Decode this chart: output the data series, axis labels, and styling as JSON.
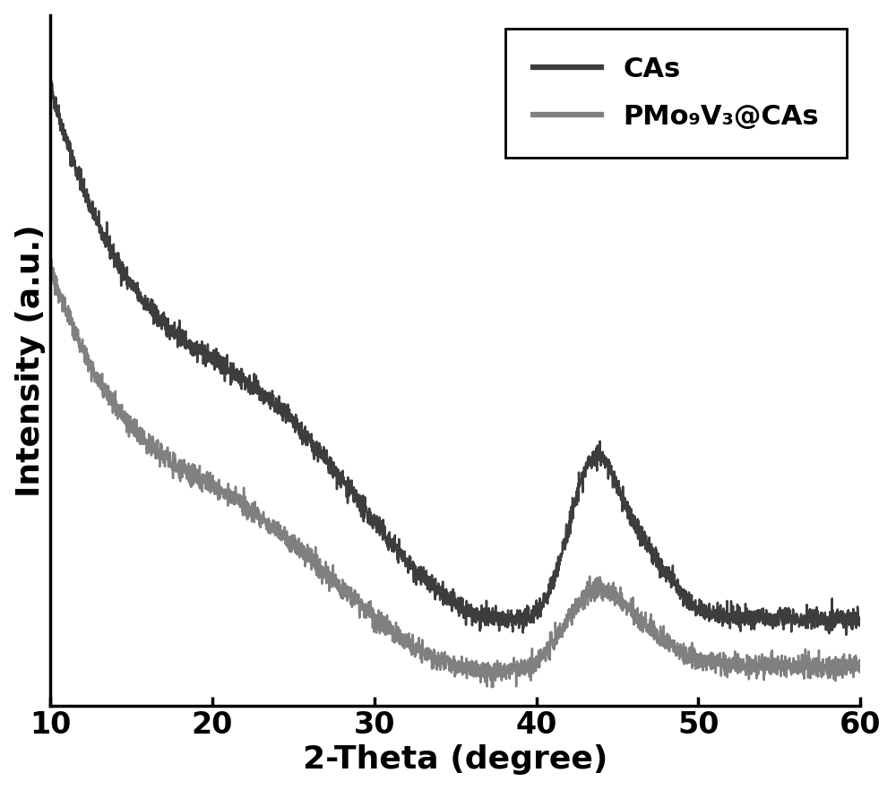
{
  "xlim": [
    10,
    60
  ],
  "xlabel": "2-Theta (degree)",
  "ylabel": "Intensity (a.u.)",
  "xlabel_fontsize": 26,
  "ylabel_fontsize": 26,
  "tick_fontsize": 24,
  "legend_fontsize": 22,
  "line1_color": "#3d3d3d",
  "line2_color": "#808080",
  "line1_linewidth": 1.8,
  "line2_linewidth": 1.8,
  "label1": "CAs",
  "label2": "PMo₉V₃@CAs",
  "background_color": "#ffffff",
  "figsize": [
    10.0,
    8.82
  ],
  "dpi": 100
}
